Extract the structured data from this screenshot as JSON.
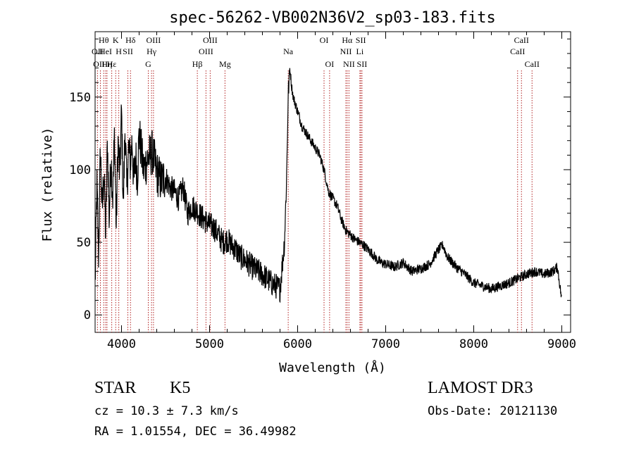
{
  "chart_data": {
    "type": "line",
    "title": "spec-56262-VB002N36V2_sp03-183.fits",
    "xlabel": "Wavelength (Å)",
    "ylabel": "Flux (relative)",
    "xlim": [
      3700,
      9100
    ],
    "ylim": [
      -12,
      195
    ],
    "x_ticks": [
      4000,
      5000,
      6000,
      7000,
      8000,
      9000
    ],
    "y_ticks": [
      0,
      50,
      100,
      150
    ],
    "series": [
      {
        "name": "flux",
        "x": [
          3700,
          3720,
          3740,
          3760,
          3780,
          3800,
          3820,
          3840,
          3860,
          3880,
          3900,
          3920,
          3940,
          3960,
          3980,
          4000,
          4020,
          4040,
          4060,
          4080,
          4100,
          4120,
          4140,
          4160,
          4180,
          4200,
          4250,
          4300,
          4350,
          4400,
          4450,
          4500,
          4550,
          4600,
          4650,
          4700,
          4750,
          4800,
          4850,
          4900,
          4950,
          5000,
          5050,
          5100,
          5150,
          5200,
          5250,
          5300,
          5350,
          5400,
          5450,
          5500,
          5550,
          5600,
          5650,
          5700,
          5750,
          5800,
          5850,
          5870,
          5880,
          5890,
          5900,
          5910,
          5920,
          5930,
          5950,
          6000,
          6050,
          6100,
          6150,
          6200,
          6250,
          6300,
          6350,
          6400,
          6450,
          6500,
          6550,
          6600,
          6650,
          6700,
          6750,
          6800,
          6850,
          6900,
          6950,
          7000,
          7100,
          7200,
          7300,
          7400,
          7500,
          7600,
          7650,
          7700,
          7800,
          7900,
          8000,
          8100,
          8200,
          8300,
          8400,
          8500,
          8600,
          8700,
          8800,
          8900,
          8950,
          9000
        ],
        "y": [
          20,
          90,
          40,
          115,
          70,
          100,
          55,
          120,
          65,
          110,
          80,
          125,
          60,
          120,
          95,
          140,
          75,
          130,
          85,
          115,
          105,
          120,
          90,
          110,
          95,
          125,
          100,
          108,
          112,
          98,
          92,
          95,
          88,
          85,
          80,
          88,
          70,
          75,
          72,
          68,
          65,
          62,
          60,
          55,
          50,
          52,
          48,
          45,
          40,
          38,
          35,
          32,
          30,
          28,
          25,
          22,
          20,
          18,
          50,
          85,
          110,
          145,
          160,
          170,
          165,
          158,
          150,
          140,
          130,
          125,
          120,
          115,
          110,
          100,
          85,
          80,
          75,
          65,
          58,
          55,
          52,
          50,
          48,
          45,
          42,
          38,
          36,
          35,
          33,
          36,
          30,
          32,
          35,
          45,
          48,
          40,
          33,
          28,
          22,
          20,
          18,
          20,
          22,
          25,
          28,
          30,
          28,
          30,
          33,
          10
        ]
      }
    ],
    "lines": [
      {
        "name": "Hθ",
        "x": 3798,
        "row": 1
      },
      {
        "name": "OII",
        "x": 3727,
        "row": 2
      },
      {
        "name": "OIII",
        "x": 3760,
        "row": 3
      },
      {
        "name": "HeI",
        "x": 3820,
        "row": 2
      },
      {
        "name": "Hη",
        "x": 3835,
        "row": 3
      },
      {
        "name": "Hε",
        "x": 3889,
        "row": 3
      },
      {
        "name": "K",
        "x": 3934,
        "row": 1
      },
      {
        "name": "H",
        "x": 3969,
        "row": 2
      },
      {
        "name": "Hδ",
        "x": 4102,
        "row": 1
      },
      {
        "name": "SII",
        "x": 4072,
        "row": 2
      },
      {
        "name": "OIII",
        "x": 4363,
        "row": 1
      },
      {
        "name": "Hγ",
        "x": 4341,
        "row": 2
      },
      {
        "name": "G",
        "x": 4304,
        "row": 3
      },
      {
        "name": "Hβ",
        "x": 4861,
        "row": 3
      },
      {
        "name": "OIII",
        "x": 5007,
        "row": 1
      },
      {
        "name": "OIII",
        "x": 4959,
        "row": 2
      },
      {
        "name": "Mg",
        "x": 5175,
        "row": 3
      },
      {
        "name": "Na",
        "x": 5893,
        "row": 2
      },
      {
        "name": "OI",
        "x": 6300,
        "row": 1
      },
      {
        "name": "OI",
        "x": 6363,
        "row": 3
      },
      {
        "name": "Hα",
        "x": 6563,
        "row": 1
      },
      {
        "name": "NII",
        "x": 6548,
        "row": 2
      },
      {
        "name": "NII",
        "x": 6583,
        "row": 3
      },
      {
        "name": "SII",
        "x": 6717,
        "row": 1
      },
      {
        "name": "Li",
        "x": 6707,
        "row": 2
      },
      {
        "name": "SII",
        "x": 6731,
        "row": 3
      },
      {
        "name": "CaII",
        "x": 8542,
        "row": 1
      },
      {
        "name": "CaII",
        "x": 8498,
        "row": 2
      },
      {
        "name": "CaII",
        "x": 8662,
        "row": 3
      }
    ],
    "colors": {
      "spectrum": "#000000",
      "lines": "#b22222"
    }
  },
  "info": {
    "class": "STAR",
    "subclass": "K5",
    "survey": "LAMOST DR3",
    "cz": "cz = 10.3 ± 7.3 km/s",
    "obs_date": "Obs-Date: 20121130",
    "radec": "RA =   1.01554, DEC =  36.49982"
  }
}
